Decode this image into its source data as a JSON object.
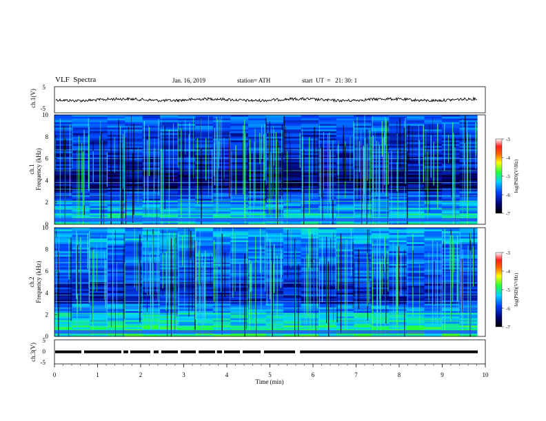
{
  "header": {
    "title": "VLF  Spectra",
    "date": "Jan. 16, 2019",
    "station": "station= ATH",
    "start": "start  UT  =   21: 30: 1"
  },
  "chart_data": [
    {
      "type": "line",
      "ylabel": "ch.1(V)",
      "yticks": [
        "5",
        "-5"
      ],
      "ylim": [
        -5,
        5
      ],
      "xlim": [
        0,
        10
      ],
      "level": 0.0,
      "series_note": "noisy waveform near 0 V"
    },
    {
      "type": "heatmap",
      "ylabel": "ch.1\nFrequency (kHz)",
      "ylabel_line1": "ch.1",
      "ylabel_line2": "Frequency (kHz)",
      "yticks": [
        "0",
        "2",
        "4",
        "6",
        "8",
        "10"
      ],
      "ylim": [
        0,
        10
      ],
      "xlim": [
        0,
        9.8
      ],
      "colorbar": {
        "label": "log(PSD)(V²/Hz)",
        "ticks": [
          "-3",
          "-4",
          "-5",
          "-6",
          "-7"
        ],
        "range": [
          -7,
          -3
        ]
      }
    },
    {
      "type": "heatmap",
      "ylabel_line1": "ch.2",
      "ylabel_line2": "Frequency (kHz)",
      "yticks": [
        "0",
        "2",
        "4",
        "6",
        "8",
        "10"
      ],
      "ylim": [
        0,
        10
      ],
      "xlim": [
        0,
        9.8
      ],
      "colorbar": {
        "label": "log(PSD)(V²/Hz)",
        "ticks": [
          "-3",
          "-4",
          "-5",
          "-6",
          "-7"
        ],
        "range": [
          -7,
          -3
        ]
      }
    },
    {
      "type": "line",
      "ylabel": "ch.3(V)",
      "yticks": [
        "5",
        "0",
        "-5"
      ],
      "ylim": [
        -5,
        5
      ],
      "level": 0.0,
      "xlabel": "Time  (min)",
      "xticks": [
        "0",
        "1",
        "2",
        "3",
        "4",
        "5",
        "6",
        "7",
        "8",
        "9",
        "10"
      ],
      "xlim": [
        0,
        10
      ]
    }
  ],
  "colors": {
    "spectrum_low": "#00005a",
    "spectrum_mid": "#2a4dff",
    "spectrum_high": "#22ff55"
  }
}
